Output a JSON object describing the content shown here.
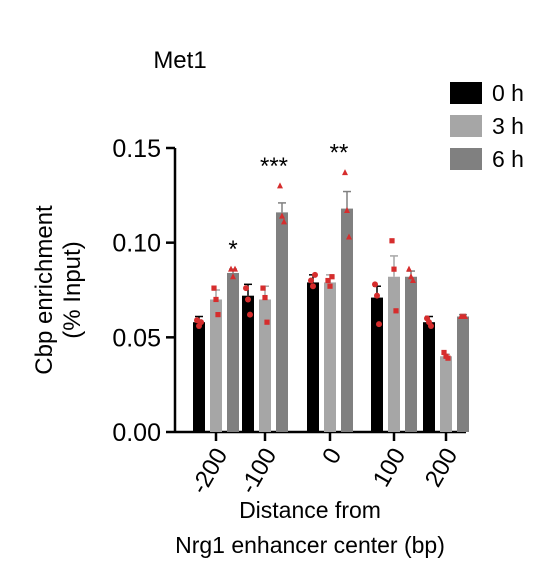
{
  "chart_data": {
    "type": "bar",
    "title": "Met1",
    "ylabel_line1": "Cbp enrichment",
    "ylabel_line2": "(% Input)",
    "xlabel_line1": "Distance from",
    "xlabel_line2": "Nrg1 enhancer center  (bp)",
    "categories": [
      "-200",
      "-100",
      "0",
      "100",
      "200"
    ],
    "ylim": [
      0,
      0.15
    ],
    "yticks": [
      "0.00",
      "0.05",
      "0.10",
      "0.15"
    ],
    "ytick_values": [
      0,
      0.05,
      0.1,
      0.15
    ],
    "legend_position": "top-right",
    "series": [
      {
        "name": "0 h",
        "color": "#000000",
        "values": [
          0.058,
          0.072,
          0.079,
          0.071,
          0.058
        ],
        "errors": [
          0.003,
          0.006,
          0.004,
          0.006,
          0.003
        ],
        "points": [
          [
            0.059,
            0.056,
            0.058
          ],
          [
            0.076,
            0.07,
            0.062
          ],
          [
            0.08,
            0.077,
            0.083
          ],
          [
            0.078,
            0.072,
            0.057
          ],
          [
            0.06,
            0.058,
            0.056
          ]
        ],
        "point_shape": "circle"
      },
      {
        "name": "3 h",
        "color": "#a6a6a6",
        "values": [
          0.07,
          0.07,
          0.079,
          0.082,
          0.04
        ],
        "errors": [
          0.005,
          0.007,
          0.004,
          0.011,
          0.001
        ],
        "points": [
          [
            0.076,
            0.07,
            0.062
          ],
          [
            0.076,
            0.071,
            0.058
          ],
          [
            0.08,
            0.077,
            0.082
          ],
          [
            0.101,
            0.086,
            0.064
          ],
          [
            0.042,
            0.04,
            0.039
          ]
        ],
        "point_shape": "square"
      },
      {
        "name": "6 h",
        "color": "#808080",
        "values": [
          0.084,
          0.116,
          0.118,
          0.082,
          0.061
        ],
        "errors": [
          0.002,
          0.005,
          0.009,
          0.003,
          0.001
        ],
        "points": [
          [
            0.086,
            0.082,
            0.086
          ],
          [
            0.13,
            0.114,
            0.111
          ],
          [
            0.137,
            0.117,
            0.103
          ],
          [
            0.086,
            0.082,
            0.08
          ],
          [
            0.061,
            0.061,
            0.061
          ]
        ],
        "point_shape": "triangle"
      }
    ],
    "significance": [
      "*",
      "***",
      "**",
      "",
      ""
    ],
    "point_color": "#d62d2d"
  }
}
